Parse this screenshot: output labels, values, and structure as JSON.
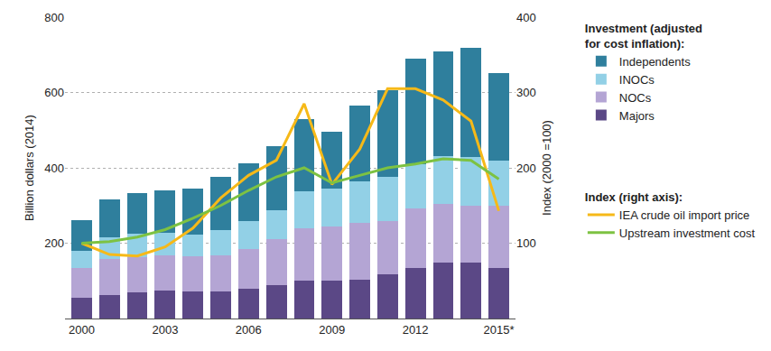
{
  "chart_data": {
    "type": "bar",
    "stacked": true,
    "grid": true,
    "legend": "right",
    "ylabel": "Billion dollars (2014)",
    "y2label": "Index (2000 =100)",
    "legend_title_bars": "Investment (adjusted for cost inflation):",
    "legend_title_lines": "Index (right axis):",
    "categories": [
      "2000",
      null,
      null,
      "2003",
      null,
      null,
      "2006",
      null,
      null,
      "2009",
      null,
      null,
      "2012",
      null,
      null,
      "2015*"
    ],
    "ylim": [
      0,
      800
    ],
    "yticks": [
      200,
      400,
      600,
      800
    ],
    "y2lim": [
      0,
      400
    ],
    "y2ticks": [
      100,
      200,
      300,
      400
    ],
    "series": [
      {
        "name": "Majors",
        "type": "bar",
        "color": "#5b4886",
        "values": [
          55,
          63,
          70,
          75,
          72,
          72,
          80,
          88,
          100,
          100,
          102,
          118,
          135,
          148,
          148,
          135
        ]
      },
      {
        "name": "NOCs",
        "type": "bar",
        "color": "#b4a5d4",
        "values": [
          80,
          95,
          92,
          93,
          93,
          96,
          105,
          122,
          140,
          145,
          153,
          140,
          158,
          157,
          152,
          165
        ]
      },
      {
        "name": "INOCs",
        "type": "bar",
        "color": "#92d0e6",
        "values": [
          45,
          57,
          63,
          60,
          57,
          67,
          73,
          78,
          98,
          100,
          110,
          117,
          117,
          127,
          128,
          120
        ]
      },
      {
        "name": "Independents",
        "type": "bar",
        "color": "#2f7f9d",
        "values": [
          82,
          100,
          108,
          112,
          123,
          140,
          155,
          170,
          192,
          150,
          200,
          230,
          280,
          276,
          290,
          232
        ]
      },
      {
        "name": "IEA crude oil import price",
        "type": "line",
        "axis": "y2",
        "color": "#f6b918",
        "values": [
          100,
          85,
          83,
          95,
          120,
          160,
          190,
          210,
          285,
          178,
          225,
          305,
          305,
          290,
          262,
          143
        ]
      },
      {
        "name": "Upstream investment cost",
        "type": "line",
        "axis": "y2",
        "color": "#7dc242",
        "values": [
          100,
          102,
          108,
          118,
          133,
          150,
          170,
          188,
          200,
          180,
          190,
          200,
          205,
          212,
          210,
          185
        ]
      }
    ]
  }
}
